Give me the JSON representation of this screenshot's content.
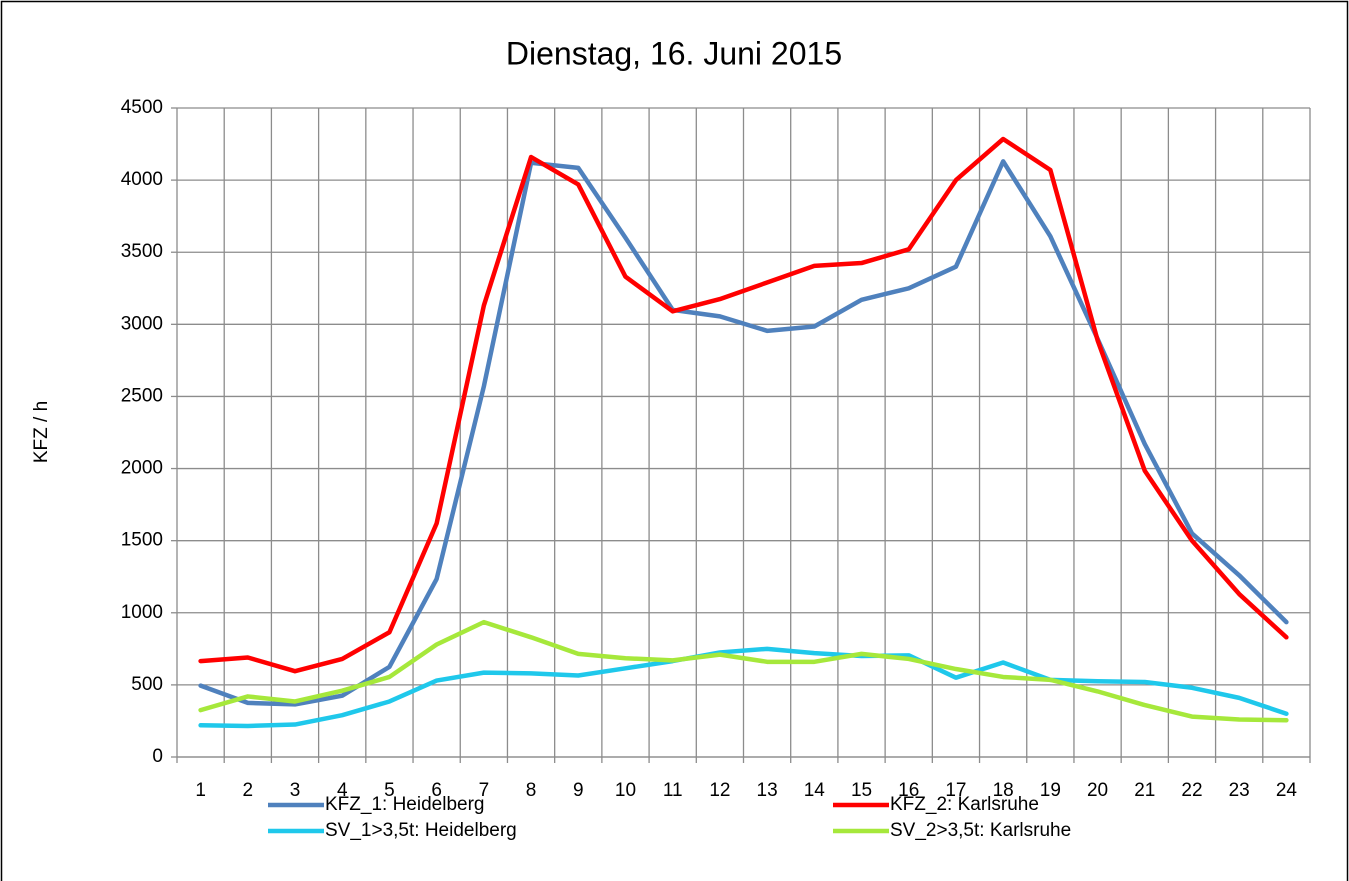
{
  "chart_data": {
    "type": "line",
    "title": "Dienstag, 16. Juni 2015",
    "y_label": "KFZ / h",
    "categories": [
      "1",
      "2",
      "3",
      "4",
      "5",
      "6",
      "7",
      "8",
      "9",
      "10",
      "11",
      "12",
      "13",
      "14",
      "15",
      "16",
      "17",
      "18",
      "19",
      "20",
      "21",
      "22",
      "23",
      "24"
    ],
    "ylim": [
      0,
      4500
    ],
    "yticks": [
      0,
      500,
      1000,
      1500,
      2000,
      2500,
      3000,
      3500,
      4000,
      4500
    ],
    "grid": true,
    "legend": "bottom",
    "series": [
      {
        "name": "KFZ_1: Heidelberg",
        "color": "#4f81bd",
        "values": [
          495,
          375,
          365,
          425,
          625,
          1235,
          2570,
          4120,
          4085,
          3600,
          3100,
          3055,
          2955,
          2985,
          3170,
          3250,
          3400,
          4130,
          3610,
          2900,
          2170,
          1550,
          1260,
          935
        ]
      },
      {
        "name": "KFZ_2: Karlsruhe",
        "color": "#ff0000",
        "values": [
          665,
          690,
          595,
          680,
          865,
          1620,
          3130,
          4160,
          3970,
          3330,
          3090,
          3175,
          3290,
          3405,
          3425,
          3520,
          4000,
          4285,
          4070,
          2890,
          1985,
          1500,
          1130,
          830
        ]
      },
      {
        "name": "SV_1>3,5t: Heidelberg",
        "color": "#1fc8eb",
        "values": [
          220,
          215,
          225,
          290,
          385,
          530,
          585,
          580,
          565,
          615,
          665,
          725,
          750,
          720,
          700,
          705,
          550,
          655,
          535,
          525,
          520,
          480,
          410,
          300
        ]
      },
      {
        "name": "SV_2>3,5t: Karlsruhe",
        "color": "#a6e83b",
        "values": [
          325,
          420,
          385,
          460,
          555,
          780,
          935,
          830,
          715,
          685,
          670,
          710,
          660,
          660,
          715,
          680,
          610,
          555,
          535,
          455,
          360,
          280,
          260,
          255
        ]
      }
    ]
  }
}
